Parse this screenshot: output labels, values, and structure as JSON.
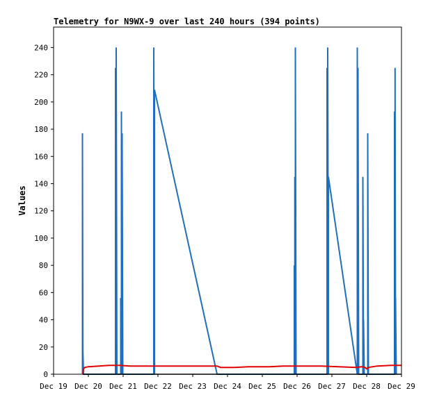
{
  "chart_data": {
    "type": "line",
    "title": "Telemetry for N9WX-9 over last 240 hours (394 points)",
    "ylabel": "Values",
    "xlabel": "",
    "ylim": [
      0,
      255
    ],
    "yticks": [
      0,
      20,
      40,
      60,
      80,
      100,
      120,
      140,
      160,
      180,
      200,
      220,
      240
    ],
    "x_axis": {
      "unit": "day",
      "range_days": [
        "Dec 19",
        "Dec 29"
      ],
      "tick_labels": [
        "Dec 19",
        "Dec 20",
        "Dec 21",
        "Dec 22",
        "Dec 23",
        "Dec 24",
        "Dec 25",
        "Dec 26",
        "Dec 27",
        "Dec 28",
        "Dec 29"
      ]
    },
    "grid": false,
    "legend": "none",
    "series": [
      {
        "color": "#1f6fc0",
        "style": "spikes",
        "points_day_value": [
          [
            19.83,
            0
          ],
          [
            19.83,
            177
          ],
          [
            19.845,
            0
          ],
          [
            19.845,
            16
          ],
          [
            19.86,
            0
          ],
          [
            20.78,
            0
          ],
          [
            20.78,
            225
          ],
          [
            20.8,
            0
          ],
          [
            20.8,
            240
          ],
          [
            20.82,
            0
          ],
          [
            20.93,
            0
          ],
          [
            20.93,
            56
          ],
          [
            20.95,
            0
          ],
          [
            20.95,
            193
          ],
          [
            20.97,
            0
          ],
          [
            20.97,
            177
          ],
          [
            20.99,
            0
          ],
          [
            21.88,
            0
          ],
          [
            21.88,
            240
          ],
          [
            21.9,
            0
          ],
          [
            21.9,
            209
          ],
          [
            23.7,
            0
          ],
          [
            25.92,
            0
          ],
          [
            25.92,
            80
          ],
          [
            25.935,
            0
          ],
          [
            25.935,
            145
          ],
          [
            25.95,
            0
          ],
          [
            25.95,
            240
          ],
          [
            25.97,
            0
          ],
          [
            26.86,
            0
          ],
          [
            26.86,
            225
          ],
          [
            26.88,
            0
          ],
          [
            26.88,
            240
          ],
          [
            26.9,
            0
          ],
          [
            26.9,
            145
          ],
          [
            27.73,
            0
          ],
          [
            27.73,
            240
          ],
          [
            27.75,
            0
          ],
          [
            27.75,
            225
          ],
          [
            27.77,
            0
          ],
          [
            27.89,
            0
          ],
          [
            27.89,
            145
          ],
          [
            27.91,
            0
          ],
          [
            27.91,
            40
          ],
          [
            27.93,
            0
          ],
          [
            28.03,
            0
          ],
          [
            28.03,
            177
          ],
          [
            28.05,
            0
          ],
          [
            28.8,
            0
          ],
          [
            28.8,
            193
          ],
          [
            28.815,
            0
          ],
          [
            28.815,
            225
          ],
          [
            28.83,
            0
          ],
          [
            28.83,
            56
          ],
          [
            28.85,
            0
          ]
        ]
      },
      {
        "color": "#e00000",
        "style": "line",
        "points_day_value": [
          [
            19.84,
            0
          ],
          [
            19.86,
            4
          ],
          [
            19.9,
            5
          ],
          [
            20.0,
            5.5
          ],
          [
            20.3,
            6
          ],
          [
            20.6,
            6.5
          ],
          [
            20.9,
            6.5
          ],
          [
            21.2,
            6
          ],
          [
            21.8,
            6
          ],
          [
            22.5,
            6
          ],
          [
            23.2,
            6
          ],
          [
            23.7,
            6
          ],
          [
            23.8,
            5
          ],
          [
            24.2,
            5
          ],
          [
            24.6,
            5.5
          ],
          [
            25.2,
            5.5
          ],
          [
            25.6,
            6
          ],
          [
            26.2,
            6
          ],
          [
            26.7,
            6
          ],
          [
            27.2,
            5.5
          ],
          [
            27.7,
            5
          ],
          [
            27.85,
            5.5
          ],
          [
            27.95,
            5
          ],
          [
            28.0,
            4
          ],
          [
            28.05,
            5
          ],
          [
            28.3,
            6
          ],
          [
            28.7,
            6.5
          ],
          [
            28.99,
            6.5
          ]
        ]
      },
      {
        "color": "#000000",
        "style": "baseline",
        "points_day_value": [
          [
            19.84,
            0
          ],
          [
            28.99,
            0
          ]
        ]
      }
    ]
  }
}
